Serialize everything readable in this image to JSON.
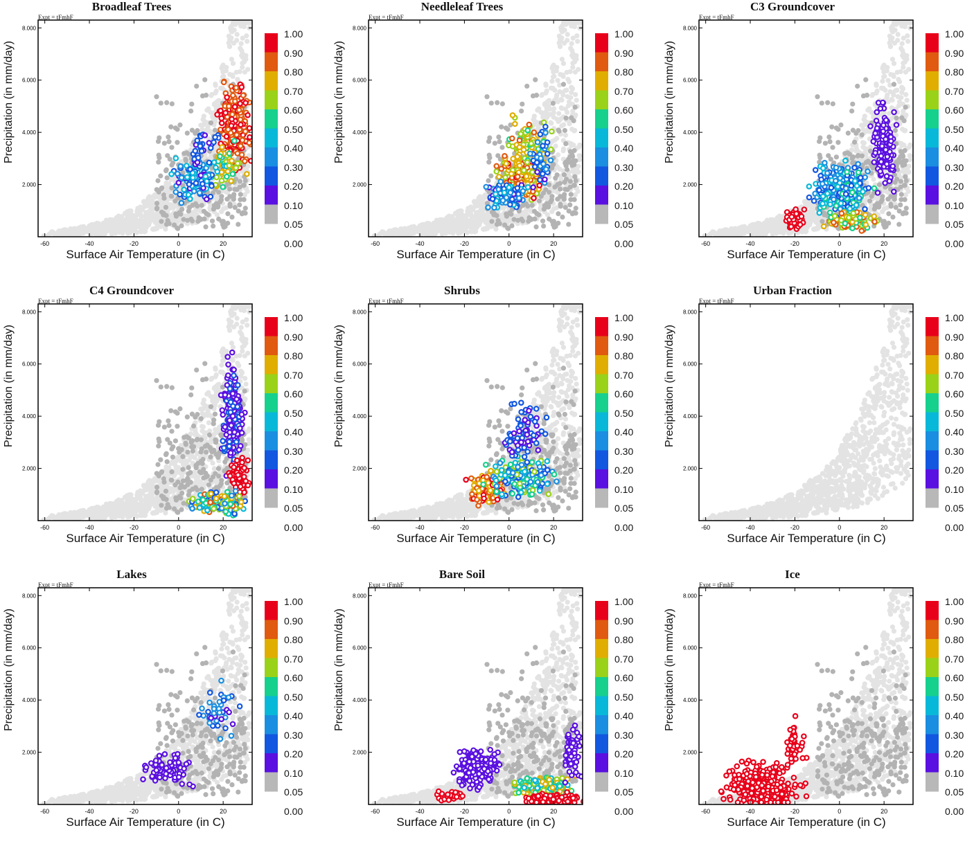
{
  "chart_data": {
    "type": "scatter",
    "description_free": true,
    "shared": {
      "expt_label": "Expt = tFmhF",
      "xlabel": "Surface Air Temperature (in C)",
      "ylabel": "Precipitation (in mm/day)",
      "xlim": [
        -63,
        33
      ],
      "ylim": [
        0,
        8300
      ],
      "xticks": [
        -60,
        -40,
        -20,
        0,
        20
      ],
      "yticks": [
        2000,
        4000,
        6000,
        8000
      ],
      "ytick_labels": [
        "2.000",
        "4.000",
        "6.000",
        "8.000"
      ],
      "colorbar_levels": [
        "1.00",
        "0.90",
        "0.80",
        "0.70",
        "0.60",
        "0.50",
        "0.40",
        "0.30",
        "0.20",
        "0.10",
        "0.05",
        "0.00"
      ],
      "colorbar_colors": [
        "#e8001a",
        "#e05a10",
        "#e0ae00",
        "#9ad219",
        "#16d08e",
        "#08b8d8",
        "#1a8ee0",
        "#1257e0",
        "#5a10e0",
        "#b8b8b8"
      ],
      "background_color": "#e3e3e3",
      "zero_color": "#b3b3b3"
    },
    "panels": [
      {
        "title": "Broadleaf Trees",
        "clusters": [
          {
            "cx": 25,
            "cy": 4300,
            "sx": 5,
            "sy": 1200,
            "n": 260,
            "lo": 0.72,
            "hi": 0.88
          },
          {
            "cx": 22,
            "cy": 2600,
            "sx": 5,
            "sy": 600,
            "n": 60,
            "lo": 0.35,
            "hi": 0.7
          },
          {
            "cx": 8,
            "cy": 2200,
            "sx": 7,
            "sy": 600,
            "n": 120,
            "lo": 0.06,
            "hi": 0.4
          },
          {
            "cx": 12,
            "cy": 3500,
            "sx": 5,
            "sy": 500,
            "n": 25,
            "lo": 0.06,
            "hi": 0.2
          }
        ]
      },
      {
        "title": "Needleleaf Trees",
        "clusters": [
          {
            "cx": 5,
            "cy": 2200,
            "sx": 7,
            "sy": 600,
            "n": 200,
            "lo": 0.55,
            "hi": 0.85
          },
          {
            "cx": 8,
            "cy": 3500,
            "sx": 7,
            "sy": 700,
            "n": 80,
            "lo": 0.45,
            "hi": 0.75
          },
          {
            "cx": 0,
            "cy": 1600,
            "sx": 8,
            "sy": 400,
            "n": 100,
            "lo": 0.06,
            "hi": 0.4
          },
          {
            "cx": 15,
            "cy": 3000,
            "sx": 4,
            "sy": 900,
            "n": 40,
            "lo": 0.06,
            "hi": 0.3
          }
        ]
      },
      {
        "title": "C3 Groundcover",
        "clusters": [
          {
            "cx": -20,
            "cy": 700,
            "sx": 3,
            "sy": 250,
            "n": 100,
            "lo": 0.95,
            "hi": 1.0
          },
          {
            "cx": 0,
            "cy": 1800,
            "sx": 9,
            "sy": 700,
            "n": 300,
            "lo": 0.1,
            "hi": 0.45
          },
          {
            "cx": 5,
            "cy": 600,
            "sx": 8,
            "sy": 250,
            "n": 80,
            "lo": 0.45,
            "hi": 0.8
          },
          {
            "cx": 20,
            "cy": 3500,
            "sx": 4,
            "sy": 1200,
            "n": 140,
            "lo": 0.05,
            "hi": 0.1
          }
        ]
      },
      {
        "title": "C4 Groundcover",
        "clusters": [
          {
            "cx": 24,
            "cy": 4000,
            "sx": 3,
            "sy": 1500,
            "n": 200,
            "lo": 0.05,
            "hi": 0.12
          },
          {
            "cx": 27,
            "cy": 1600,
            "sx": 3,
            "sy": 600,
            "n": 100,
            "lo": 0.9,
            "hi": 1.0
          },
          {
            "cx": 18,
            "cy": 700,
            "sx": 9,
            "sy": 300,
            "n": 180,
            "lo": 0.15,
            "hi": 0.75
          }
        ]
      },
      {
        "title": "Shrubs",
        "clusters": [
          {
            "cx": -10,
            "cy": 1200,
            "sx": 5,
            "sy": 400,
            "n": 220,
            "lo": 0.6,
            "hi": 0.85
          },
          {
            "cx": 5,
            "cy": 1700,
            "sx": 10,
            "sy": 600,
            "n": 200,
            "lo": 0.1,
            "hi": 0.6
          },
          {
            "cx": 8,
            "cy": 3400,
            "sx": 7,
            "sy": 900,
            "n": 70,
            "lo": 0.05,
            "hi": 0.2
          }
        ]
      },
      {
        "title": "Urban Fraction",
        "clusters": []
      },
      {
        "title": "Lakes",
        "clusters": [
          {
            "cx": -5,
            "cy": 1300,
            "sx": 9,
            "sy": 500,
            "n": 70,
            "lo": 0.05,
            "hi": 0.1
          },
          {
            "cx": 18,
            "cy": 3500,
            "sx": 7,
            "sy": 900,
            "n": 40,
            "lo": 0.05,
            "hi": 0.3
          }
        ]
      },
      {
        "title": "Bare Soil",
        "clusters": [
          {
            "cx": -14,
            "cy": 1400,
            "sx": 7,
            "sy": 500,
            "n": 200,
            "lo": 0.05,
            "hi": 0.1
          },
          {
            "cx": 15,
            "cy": 700,
            "sx": 9,
            "sy": 250,
            "n": 250,
            "lo": 0.3,
            "hi": 0.7
          },
          {
            "cx": 28,
            "cy": 2000,
            "sx": 3,
            "sy": 800,
            "n": 60,
            "lo": 0.05,
            "hi": 0.1
          },
          {
            "cx": 20,
            "cy": 200,
            "sx": 10,
            "sy": 150,
            "n": 120,
            "lo": 0.95,
            "hi": 1.0
          },
          {
            "cx": -25,
            "cy": 300,
            "sx": 5,
            "sy": 150,
            "n": 30,
            "lo": 0.95,
            "hi": 1.0
          }
        ]
      },
      {
        "title": "Ice",
        "clusters": [
          {
            "cx": -35,
            "cy": 700,
            "sx": 12,
            "sy": 600,
            "n": 350,
            "lo": 0.95,
            "hi": 1.0
          },
          {
            "cx": -20,
            "cy": 2500,
            "sx": 3,
            "sy": 700,
            "n": 40,
            "lo": 0.95,
            "hi": 1.0
          }
        ]
      }
    ]
  }
}
